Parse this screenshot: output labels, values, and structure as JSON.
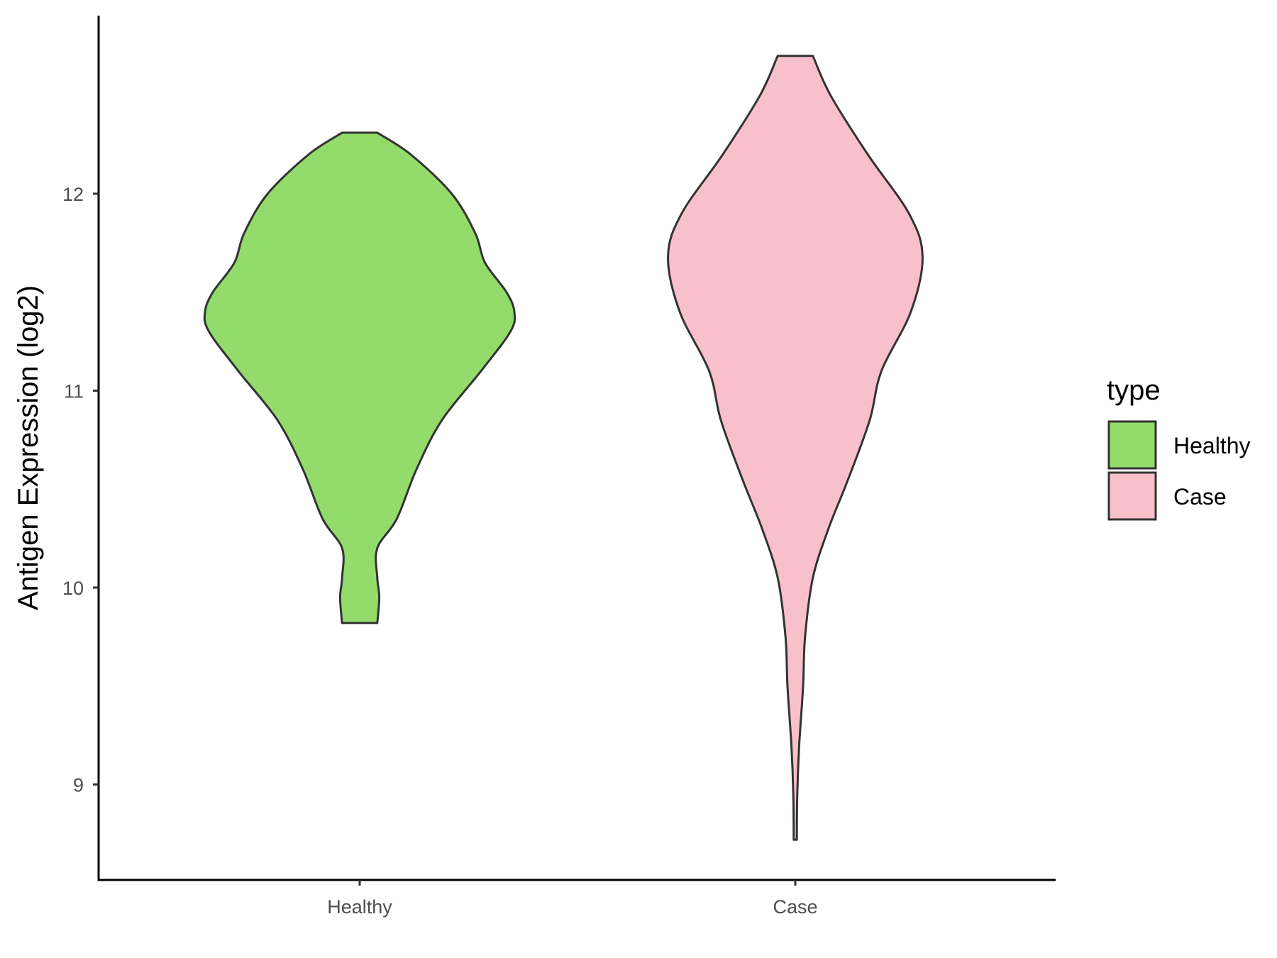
{
  "chart_data": {
    "type": "violin",
    "ylabel": "Antigen Expression (log2)",
    "xlabel": "",
    "categories": [
      "Healthy",
      "Case"
    ],
    "ylim": [
      8.55,
      12.9
    ],
    "yticks": [
      9,
      10,
      11,
      12
    ],
    "grid": false,
    "legend": {
      "title": "type",
      "position": "right",
      "items": [
        {
          "label": "Healthy",
          "color": "#93DC6B"
        },
        {
          "label": "Case",
          "color": "#F8C0CB"
        }
      ]
    },
    "series": [
      {
        "category": "Healthy",
        "color": "#93DC6B",
        "min": 9.82,
        "max": 12.31,
        "profile": [
          [
            9.82,
            0.09
          ],
          [
            9.95,
            0.1
          ],
          [
            10.05,
            0.09
          ],
          [
            10.2,
            0.09
          ],
          [
            10.35,
            0.19
          ],
          [
            10.6,
            0.29
          ],
          [
            10.85,
            0.42
          ],
          [
            11.1,
            0.62
          ],
          [
            11.3,
            0.77
          ],
          [
            11.4,
            0.79
          ],
          [
            11.5,
            0.75
          ],
          [
            11.65,
            0.64
          ],
          [
            11.8,
            0.59
          ],
          [
            12.0,
            0.47
          ],
          [
            12.2,
            0.26
          ],
          [
            12.31,
            0.09
          ]
        ]
      },
      {
        "category": "Case",
        "color": "#F8C0CB",
        "min": 8.72,
        "max": 12.7,
        "profile": [
          [
            8.72,
            0.008
          ],
          [
            8.95,
            0.01
          ],
          [
            9.2,
            0.02
          ],
          [
            9.5,
            0.04
          ],
          [
            9.75,
            0.05
          ],
          [
            10.05,
            0.09
          ],
          [
            10.3,
            0.17
          ],
          [
            10.55,
            0.27
          ],
          [
            10.85,
            0.38
          ],
          [
            11.1,
            0.44
          ],
          [
            11.4,
            0.59
          ],
          [
            11.68,
            0.65
          ],
          [
            11.9,
            0.58
          ],
          [
            12.2,
            0.37
          ],
          [
            12.5,
            0.18
          ],
          [
            12.7,
            0.09
          ]
        ]
      }
    ]
  }
}
